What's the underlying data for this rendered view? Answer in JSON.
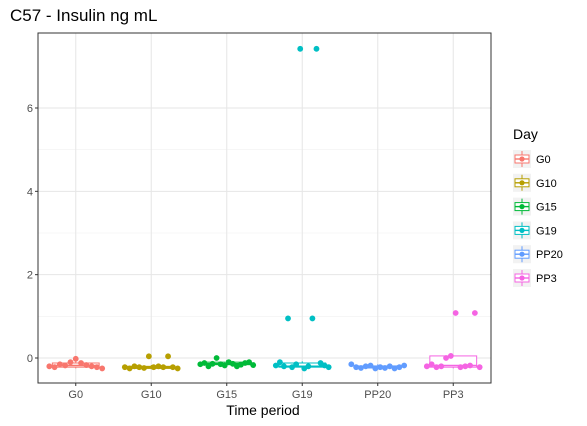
{
  "chart_data": {
    "type": "box-jitter",
    "title": "C57 - Insulin ng mL",
    "xlabel": "Time period",
    "ylabel": "",
    "categories": [
      "G0",
      "G10",
      "G15",
      "G19",
      "PP20",
      "PP3"
    ],
    "yticks": [
      0,
      2,
      4,
      6
    ],
    "ylim": [
      -0.6,
      7.8
    ],
    "legend": {
      "title": "Day",
      "position": "right",
      "entries": [
        "G0",
        "G10",
        "G15",
        "G19",
        "PP20",
        "PP3"
      ]
    },
    "colors": [
      "#F8766D",
      "#B79F00",
      "#00BA38",
      "#00BFC4",
      "#619CFF",
      "#F564E3"
    ],
    "grid": true,
    "boxes": [
      {
        "category": "G0",
        "q1": -0.22,
        "median": -0.18,
        "q3": -0.12,
        "whisker_low": -0.25,
        "whisker_high": -0.02
      },
      {
        "category": "G10",
        "q1": -0.25,
        "median": -0.22,
        "q3": -0.2,
        "whisker_low": -0.27,
        "whisker_high": -0.17
      },
      {
        "category": "G15",
        "q1": -0.16,
        "median": -0.14,
        "q3": -0.1,
        "whisker_low": -0.2,
        "whisker_high": -0.05
      },
      {
        "category": "G19",
        "q1": -0.22,
        "median": -0.2,
        "q3": -0.12,
        "whisker_low": -0.25,
        "whisker_high": -0.08
      },
      {
        "category": "PP20",
        "q1": -0.24,
        "median": -0.22,
        "q3": -0.19,
        "whisker_low": -0.27,
        "whisker_high": -0.15
      },
      {
        "category": "PP3",
        "q1": -0.22,
        "median": -0.18,
        "q3": 0.05,
        "whisker_low": -0.25,
        "whisker_high": 0.05
      }
    ],
    "points": [
      {
        "category": "G0",
        "values": [
          -0.2,
          -0.22,
          -0.15,
          -0.18,
          -0.1,
          -0.02,
          -0.12,
          -0.17,
          -0.2,
          -0.22,
          -0.25
        ]
      },
      {
        "category": "G10",
        "values": [
          -0.22,
          -0.25,
          -0.2,
          -0.22,
          -0.24,
          0.04,
          -0.22,
          -0.2,
          -0.22,
          0.04,
          -0.22,
          -0.25
        ]
      },
      {
        "category": "G15",
        "values": [
          -0.15,
          -0.12,
          -0.2,
          -0.14,
          0.0,
          -0.15,
          -0.18,
          -0.1,
          -0.14,
          -0.2,
          -0.16,
          -0.12,
          -0.1,
          -0.17
        ]
      },
      {
        "category": "G19",
        "values": [
          -0.18,
          -0.1,
          -0.2,
          0.95,
          -0.22,
          -0.15,
          7.42,
          -0.25,
          -0.2,
          0.95,
          7.42,
          -0.12,
          -0.18,
          -0.22
        ]
      },
      {
        "category": "PP20",
        "values": [
          -0.15,
          -0.22,
          -0.24,
          -0.2,
          -0.18,
          -0.25,
          -0.22,
          -0.24,
          -0.2,
          -0.25,
          -0.22,
          -0.18
        ]
      },
      {
        "category": "PP3",
        "values": [
          -0.2,
          -0.15,
          -0.22,
          -0.2,
          0.0,
          0.05,
          1.08,
          -0.22,
          -0.2,
          -0.18,
          1.08,
          -0.22
        ]
      }
    ]
  }
}
